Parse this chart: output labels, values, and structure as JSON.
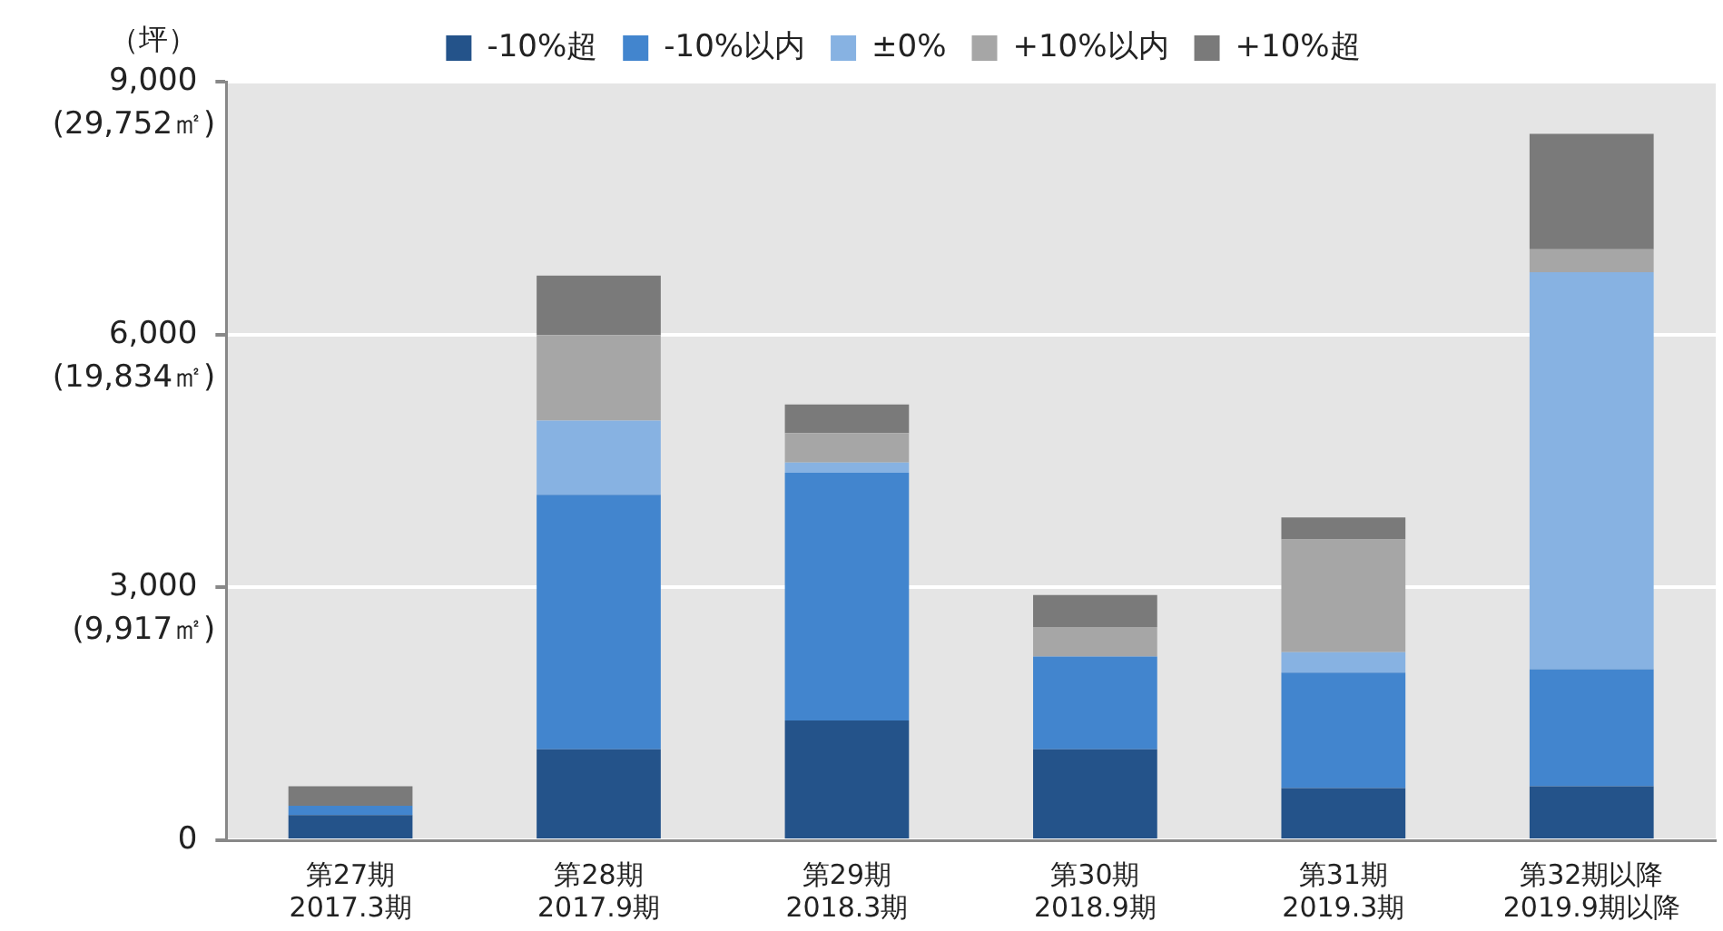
{
  "chart_data": {
    "type": "bar",
    "stacked": true,
    "ylabel": "（坪）",
    "categories": [
      "第27期\n2017.3期",
      "第28期\n2017.9期",
      "第29期\n2018.3期",
      "第30期\n2018.9期",
      "第31期\n2019.3期",
      "第32期以降\n2019.9期以降"
    ],
    "series": [
      {
        "name": "-10%超",
        "color": "#24538a",
        "values": [
          300,
          1080,
          1420,
          1080,
          620,
          640
        ]
      },
      {
        "name": "-10%以内",
        "color": "#4285ce",
        "values": [
          110,
          3020,
          2940,
          1100,
          1370,
          1390
        ]
      },
      {
        "name": "±0%",
        "color": "#87b2e2",
        "values": [
          0,
          880,
          120,
          0,
          240,
          4710
        ]
      },
      {
        "name": "+10%以内",
        "color": "#a6a6a6",
        "values": [
          0,
          1010,
          350,
          350,
          1340,
          270
        ]
      },
      {
        "name": "+10%超",
        "color": "#7a7a7a",
        "values": [
          230,
          710,
          340,
          380,
          260,
          1370
        ]
      }
    ],
    "ylim": [
      0,
      9000
    ],
    "yticks": [
      0,
      {
        "value": 3000,
        "label": "3,000"
      },
      {
        "value": 6000,
        "label": "6,000"
      },
      {
        "value": 9000,
        "label": "9,000"
      }
    ],
    "y2lim": [
      0,
      29752
    ],
    "y2ticks": [
      {
        "value": 9917,
        "label": "(9,917㎡)"
      },
      {
        "value": 19834,
        "label": "(19,834㎡)"
      },
      {
        "value": 29752,
        "label": "(29,752㎡)"
      }
    ],
    "grid": "y",
    "legend": "top"
  }
}
